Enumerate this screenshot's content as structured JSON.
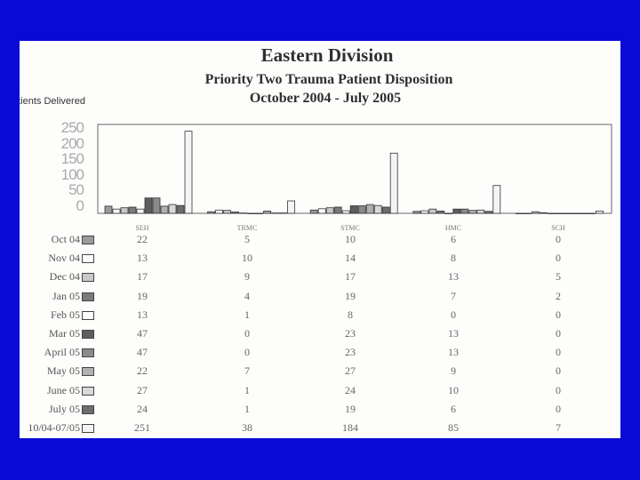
{
  "title": "Eastern Division",
  "subtitle": "Priority Two Trauma Patient Disposition",
  "period": "October 2004 - July 2005",
  "colors": {
    "background": "#0a0ad6",
    "slide": "#fdfdfb"
  },
  "chart_data": {
    "type": "bar",
    "ylabel": "atients Delivered",
    "ylim": [
      0,
      250
    ],
    "yticks": [
      "250",
      "200",
      "150",
      "100",
      "50",
      "0"
    ],
    "categories": [
      "SEH",
      "TRMC",
      "STMC",
      "HMC",
      "SCH"
    ],
    "grid": false,
    "legend": "table-left",
    "series": [
      {
        "name": "Oct 04",
        "values": [
          22,
          5,
          10,
          6,
          0
        ],
        "fill": "#9a9a9a"
      },
      {
        "name": "Nov 04",
        "values": [
          13,
          10,
          14,
          8,
          0
        ],
        "fill": "#ffffff"
      },
      {
        "name": "Dec 04",
        "values": [
          17,
          9,
          17,
          13,
          5
        ],
        "fill": "#c8c8c8"
      },
      {
        "name": "Jan 05",
        "values": [
          19,
          4,
          19,
          7,
          2
        ],
        "fill": "#7a7a7a"
      },
      {
        "name": "Feb 05",
        "values": [
          13,
          1,
          8,
          0,
          0
        ],
        "fill": "#ffffff"
      },
      {
        "name": "Mar 05",
        "values": [
          47,
          0,
          23,
          13,
          0
        ],
        "fill": "#5e5e5e"
      },
      {
        "name": "April 05",
        "values": [
          47,
          0,
          23,
          13,
          0
        ],
        "fill": "#8a8a8a"
      },
      {
        "name": "May 05",
        "values": [
          22,
          7,
          27,
          9,
          0
        ],
        "fill": "#b0b0b0"
      },
      {
        "name": "June 05",
        "values": [
          27,
          1,
          24,
          10,
          0
        ],
        "fill": "#d8d8d8"
      },
      {
        "name": "July 05",
        "values": [
          24,
          1,
          19,
          6,
          0
        ],
        "fill": "#6e6e6e"
      },
      {
        "name": "10/04-07/05",
        "values": [
          251,
          38,
          184,
          85,
          7
        ],
        "fill": "#f4f4f4"
      }
    ]
  }
}
